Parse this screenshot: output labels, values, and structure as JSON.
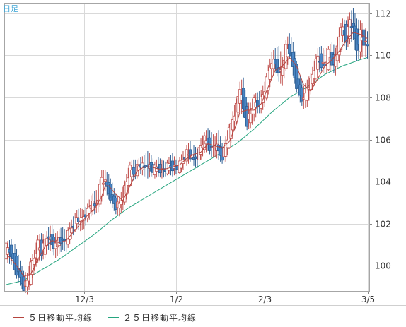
{
  "chart_data": {
    "type": "candlestick",
    "period_label": "日足",
    "y_ticks": [
      100,
      102,
      104,
      106,
      108,
      110,
      112
    ],
    "ylim": [
      98.8,
      112.5
    ],
    "x_ticks": [
      {
        "label": "12/3",
        "index": 44
      },
      {
        "label": "1/2",
        "index": 96
      },
      {
        "label": "2/3",
        "index": 146
      },
      {
        "label": "3/5",
        "index": 204
      }
    ],
    "grid": true,
    "colors": {
      "up_candle": "#ffffff",
      "up_border": "#c0504d",
      "down_candle": "#4a86c5",
      "down_border": "#2e5f94",
      "ma5": "#b5443e",
      "ma25": "#25a57f",
      "grid": "#d9d9d9",
      "period_label": "#3fa6d6"
    },
    "legend": [
      {
        "name": "５日移動平均線",
        "color": "#b5443e"
      },
      {
        "name": "２５日移動平均線",
        "color": "#25a57f"
      }
    ],
    "anchors": [
      [
        0,
        100.5,
        101.0,
        100.3,
        100.9
      ],
      [
        3,
        100.8,
        101.1,
        100.2,
        100.6
      ],
      [
        5,
        100.6,
        100.9,
        99.7,
        99.8
      ],
      [
        8,
        99.8,
        100.1,
        99.2,
        99.4
      ],
      [
        10,
        99.3,
        99.6,
        98.9,
        99.0
      ],
      [
        12,
        99.0,
        99.5,
        98.8,
        99.3
      ],
      [
        14,
        99.3,
        100.2,
        99.2,
        100.0
      ],
      [
        16,
        100.0,
        100.6,
        99.9,
        100.4
      ],
      [
        18,
        100.4,
        101.3,
        100.3,
        101.1
      ],
      [
        20,
        101.1,
        101.4,
        100.4,
        100.6
      ],
      [
        22,
        100.6,
        101.3,
        100.5,
        101.2
      ],
      [
        24,
        101.2,
        101.7,
        100.9,
        101.5
      ],
      [
        26,
        101.5,
        101.8,
        100.8,
        101.0
      ],
      [
        28,
        101.0,
        101.4,
        100.5,
        100.9
      ],
      [
        30,
        100.9,
        101.6,
        100.7,
        101.4
      ],
      [
        32,
        101.4,
        101.7,
        100.9,
        101.1
      ],
      [
        34,
        101.1,
        101.5,
        100.8,
        101.3
      ],
      [
        36,
        101.3,
        101.9,
        101.2,
        101.7
      ],
      [
        38,
        101.7,
        102.2,
        101.6,
        102.0
      ],
      [
        40,
        102.0,
        102.5,
        101.9,
        102.3
      ],
      [
        42,
        102.3,
        102.6,
        101.8,
        102.1
      ],
      [
        44,
        102.1,
        102.5,
        101.9,
        102.4
      ],
      [
        46,
        102.4,
        102.8,
        102.2,
        102.6
      ],
      [
        48,
        102.6,
        103.2,
        102.5,
        103.0
      ],
      [
        50,
        103.0,
        103.4,
        102.6,
        102.8
      ],
      [
        52,
        102.8,
        103.5,
        102.7,
        103.3
      ],
      [
        54,
        103.3,
        104.4,
        103.2,
        104.2
      ],
      [
        56,
        104.2,
        104.4,
        103.7,
        103.9
      ],
      [
        58,
        103.9,
        104.2,
        103.3,
        103.5
      ],
      [
        60,
        103.5,
        103.8,
        102.9,
        103.1
      ],
      [
        62,
        103.1,
        103.3,
        102.6,
        102.8
      ],
      [
        64,
        102.8,
        103.1,
        102.5,
        102.9
      ],
      [
        66,
        102.9,
        103.6,
        102.8,
        103.4
      ],
      [
        68,
        103.4,
        104.2,
        103.3,
        104.0
      ],
      [
        70,
        104.0,
        104.8,
        103.9,
        104.6
      ],
      [
        72,
        104.6,
        104.9,
        104.2,
        104.4
      ],
      [
        74,
        104.4,
        104.9,
        104.3,
        104.7
      ],
      [
        76,
        104.7,
        105.0,
        104.5,
        104.8
      ],
      [
        78,
        104.8,
        105.1,
        104.4,
        104.6
      ],
      [
        80,
        104.6,
        105.3,
        104.3,
        104.9
      ],
      [
        82,
        104.9,
        105.1,
        104.4,
        104.5
      ],
      [
        84,
        104.5,
        104.8,
        104.3,
        104.6
      ],
      [
        86,
        104.6,
        105.0,
        104.4,
        104.7
      ],
      [
        88,
        104.7,
        104.9,
        104.3,
        104.5
      ],
      [
        90,
        104.5,
        104.8,
        104.4,
        104.6
      ],
      [
        92,
        104.6,
        105.0,
        104.5,
        104.8
      ],
      [
        94,
        104.8,
        105.2,
        104.4,
        104.7
      ],
      [
        96,
        104.7,
        104.9,
        104.5,
        104.6
      ],
      [
        98,
        104.6,
        105.0,
        104.5,
        104.8
      ],
      [
        100,
        104.8,
        105.3,
        104.7,
        105.1
      ],
      [
        102,
        105.1,
        105.6,
        104.9,
        105.4
      ],
      [
        104,
        105.4,
        105.8,
        105.1,
        105.2
      ],
      [
        106,
        105.2,
        105.6,
        104.9,
        105.0
      ],
      [
        108,
        105.0,
        105.4,
        104.8,
        105.3
      ],
      [
        110,
        105.3,
        105.9,
        105.2,
        105.7
      ],
      [
        112,
        105.7,
        106.2,
        105.5,
        106.0
      ],
      [
        114,
        106.0,
        106.4,
        105.6,
        105.8
      ],
      [
        116,
        105.8,
        106.2,
        105.3,
        105.5
      ],
      [
        118,
        105.5,
        106.0,
        105.3,
        105.8
      ],
      [
        120,
        105.8,
        106.3,
        105.2,
        105.4
      ],
      [
        122,
        105.4,
        105.7,
        105.0,
        105.2
      ],
      [
        124,
        105.2,
        106.0,
        105.1,
        105.8
      ],
      [
        126,
        105.8,
        106.6,
        105.7,
        106.4
      ],
      [
        128,
        106.4,
        107.2,
        106.3,
        107.0
      ],
      [
        130,
        107.0,
        107.8,
        106.9,
        107.6
      ],
      [
        132,
        107.6,
        108.6,
        107.5,
        108.5
      ],
      [
        134,
        108.5,
        108.8,
        107.2,
        107.4
      ],
      [
        136,
        107.4,
        107.6,
        106.6,
        106.8
      ],
      [
        138,
        106.8,
        107.6,
        106.7,
        107.4
      ],
      [
        140,
        107.4,
        108.0,
        107.0,
        107.8
      ],
      [
        142,
        107.8,
        108.1,
        107.4,
        107.6
      ],
      [
        144,
        107.6,
        108.2,
        107.4,
        107.9
      ],
      [
        146,
        107.9,
        108.6,
        107.7,
        108.4
      ],
      [
        148,
        108.4,
        109.4,
        108.3,
        109.2
      ],
      [
        150,
        109.2,
        110.0,
        109.0,
        109.8
      ],
      [
        152,
        109.8,
        110.2,
        109.4,
        109.6
      ],
      [
        154,
        109.6,
        110.3,
        108.9,
        109.0
      ],
      [
        156,
        109.0,
        109.8,
        108.7,
        109.5
      ],
      [
        158,
        109.5,
        110.6,
        109.4,
        110.4
      ],
      [
        160,
        110.4,
        110.9,
        110.0,
        110.2
      ],
      [
        162,
        110.2,
        110.5,
        109.2,
        109.4
      ],
      [
        164,
        109.4,
        109.6,
        108.4,
        108.6
      ],
      [
        166,
        108.6,
        108.9,
        107.9,
        108.1
      ],
      [
        168,
        108.1,
        108.4,
        107.6,
        107.8
      ],
      [
        170,
        107.8,
        108.7,
        107.7,
        108.5
      ],
      [
        172,
        108.5,
        109.0,
        108.3,
        108.8
      ],
      [
        174,
        108.8,
        109.6,
        108.7,
        109.4
      ],
      [
        176,
        109.4,
        110.2,
        109.3,
        109.9
      ],
      [
        178,
        109.9,
        110.3,
        109.4,
        109.6
      ],
      [
        180,
        109.6,
        110.1,
        109.2,
        109.5
      ],
      [
        182,
        109.5,
        110.3,
        109.4,
        110.1
      ],
      [
        184,
        110.1,
        110.5,
        109.4,
        109.6
      ],
      [
        186,
        109.6,
        110.2,
        109.2,
        109.9
      ],
      [
        188,
        109.9,
        111.2,
        109.8,
        111.0
      ],
      [
        190,
        111.0,
        111.6,
        110.8,
        111.3
      ],
      [
        192,
        111.3,
        111.5,
        110.4,
        110.8
      ],
      [
        194,
        110.8,
        111.9,
        110.7,
        111.7
      ],
      [
        196,
        111.7,
        112.1,
        110.9,
        111.2
      ],
      [
        198,
        111.2,
        111.6,
        109.9,
        110.3
      ],
      [
        200,
        110.3,
        111.5,
        110.0,
        111.1
      ],
      [
        202,
        111.1,
        111.3,
        110.2,
        110.6
      ],
      [
        204,
        110.6,
        111.0,
        110.0,
        110.4
      ]
    ],
    "ma5_anchors": [
      [
        0,
        100.6
      ],
      [
        6,
        100.0
      ],
      [
        10,
        99.5
      ],
      [
        14,
        99.6
      ],
      [
        18,
        100.3
      ],
      [
        22,
        100.9
      ],
      [
        26,
        101.2
      ],
      [
        30,
        101.1
      ],
      [
        34,
        101.2
      ],
      [
        38,
        101.6
      ],
      [
        42,
        102.0
      ],
      [
        46,
        102.4
      ],
      [
        50,
        102.7
      ],
      [
        54,
        103.3
      ],
      [
        56,
        103.8
      ],
      [
        58,
        103.8
      ],
      [
        62,
        103.4
      ],
      [
        66,
        103.1
      ],
      [
        70,
        103.8
      ],
      [
        74,
        104.5
      ],
      [
        78,
        104.7
      ],
      [
        82,
        104.7
      ],
      [
        86,
        104.6
      ],
      [
        90,
        104.6
      ],
      [
        94,
        104.7
      ],
      [
        98,
        104.8
      ],
      [
        102,
        105.1
      ],
      [
        106,
        105.3
      ],
      [
        110,
        105.4
      ],
      [
        114,
        105.8
      ],
      [
        118,
        105.7
      ],
      [
        122,
        105.6
      ],
      [
        126,
        105.9
      ],
      [
        130,
        106.7
      ],
      [
        132,
        107.3
      ],
      [
        136,
        107.4
      ],
      [
        140,
        107.4
      ],
      [
        144,
        107.7
      ],
      [
        148,
        108.5
      ],
      [
        152,
        109.3
      ],
      [
        156,
        109.5
      ],
      [
        160,
        109.9
      ],
      [
        164,
        109.5
      ],
      [
        168,
        108.6
      ],
      [
        172,
        108.3
      ],
      [
        176,
        108.9
      ],
      [
        180,
        109.5
      ],
      [
        184,
        109.8
      ],
      [
        188,
        110.2
      ],
      [
        192,
        110.7
      ],
      [
        196,
        111.1
      ],
      [
        200,
        111.0
      ],
      [
        204,
        110.8
      ]
    ],
    "ma25_anchors": [
      [
        0,
        99.1
      ],
      [
        10,
        99.3
      ],
      [
        20,
        99.8
      ],
      [
        30,
        100.3
      ],
      [
        40,
        100.9
      ],
      [
        50,
        101.5
      ],
      [
        60,
        102.2
      ],
      [
        70,
        102.8
      ],
      [
        80,
        103.3
      ],
      [
        90,
        103.8
      ],
      [
        100,
        104.3
      ],
      [
        110,
        104.8
      ],
      [
        120,
        105.3
      ],
      [
        130,
        105.8
      ],
      [
        140,
        106.5
      ],
      [
        150,
        107.3
      ],
      [
        160,
        108.0
      ],
      [
        170,
        108.5
      ],
      [
        180,
        109.1
      ],
      [
        190,
        109.5
      ],
      [
        200,
        109.8
      ],
      [
        204,
        109.9
      ]
    ]
  }
}
